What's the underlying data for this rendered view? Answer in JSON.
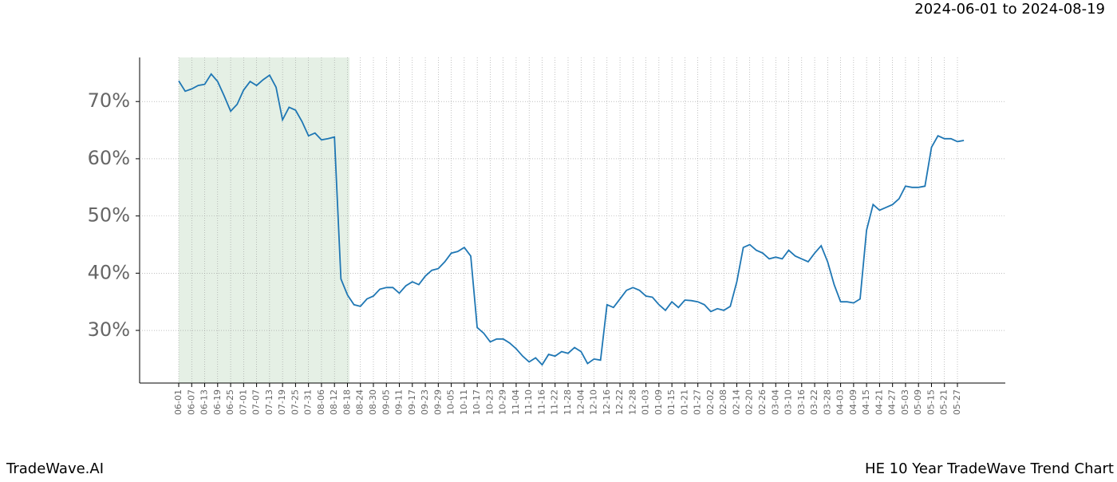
{
  "chart_data": {
    "type": "line",
    "title": "2024-06-01 to 2024-08-19",
    "footer_left": "TradeWave.AI",
    "footer_right": "HE 10 Year TradeWave Trend Chart",
    "categories": [
      "06-01",
      null,
      "06-07",
      null,
      "06-13",
      null,
      "06-19",
      null,
      "06-25",
      null,
      "07-01",
      null,
      "07-07",
      null,
      "07-13",
      null,
      "07-19",
      null,
      "07-25",
      null,
      "07-31",
      null,
      "08-06",
      null,
      "08-12",
      null,
      "08-18",
      null,
      "08-24",
      null,
      "08-30",
      null,
      "09-05",
      null,
      "09-11",
      null,
      "09-17",
      null,
      "09-23",
      null,
      "09-29",
      null,
      "10-05",
      null,
      "10-11",
      null,
      "10-17",
      null,
      "10-23",
      null,
      "10-29",
      null,
      "11-04",
      null,
      "11-10",
      null,
      "11-16",
      null,
      "11-22",
      null,
      "11-28",
      null,
      "12-04",
      null,
      "12-10",
      null,
      "12-16",
      null,
      "12-22",
      null,
      "12-28",
      null,
      "01-03",
      null,
      "01-09",
      null,
      "01-15",
      null,
      "01-21",
      null,
      "01-27",
      null,
      "02-02",
      null,
      "02-08",
      null,
      "02-14",
      null,
      "02-20",
      null,
      "02-26",
      null,
      "03-04",
      null,
      "03-10",
      null,
      "03-16",
      null,
      "03-22",
      null,
      "03-28",
      null,
      "04-03",
      null,
      "04-09",
      null,
      "04-15",
      null,
      "04-21",
      null,
      "04-27",
      null,
      "05-03",
      null,
      "05-09",
      null,
      "05-15",
      null,
      "05-21",
      null,
      "05-27",
      null
    ],
    "values": [
      73.6,
      71.8,
      72.2,
      72.8,
      73.0,
      74.8,
      73.5,
      71.0,
      68.3,
      69.5,
      72.0,
      73.5,
      72.8,
      73.8,
      74.6,
      72.5,
      66.8,
      69.0,
      68.5,
      66.5,
      64.0,
      64.5,
      63.3,
      63.5,
      63.8,
      39.0,
      36.2,
      34.5,
      34.2,
      35.5,
      36.0,
      37.2,
      37.5,
      37.5,
      36.5,
      37.8,
      38.5,
      38.0,
      39.5,
      40.5,
      40.8,
      42.0,
      43.5,
      43.8,
      44.5,
      43.0,
      30.5,
      29.5,
      28.0,
      28.5,
      28.5,
      27.8,
      26.8,
      25.5,
      24.5,
      25.2,
      24.0,
      25.8,
      25.5,
      26.3,
      26.0,
      27.0,
      26.3,
      24.2,
      25.0,
      24.8,
      34.5,
      34.0,
      35.5,
      37.0,
      37.5,
      37.0,
      36.0,
      35.8,
      34.5,
      33.5,
      35.0,
      34.0,
      35.3,
      35.2,
      35.0,
      34.5,
      33.3,
      33.8,
      33.5,
      34.2,
      38.5,
      44.5,
      45.0,
      44.0,
      43.5,
      42.5,
      42.8,
      42.5,
      44.0,
      43.0,
      42.5,
      42.0,
      43.5,
      44.8,
      42.0,
      38.0,
      35.0,
      35.0,
      34.8,
      35.5,
      47.5,
      52.0,
      51.0,
      51.5,
      52.0,
      53.0,
      55.2,
      55.0,
      55.0,
      55.2,
      62.0,
      64.0,
      63.5,
      63.5,
      63.0,
      63.2
    ],
    "color": "#1f77b4",
    "ylim": [
      20.8,
      77.7
    ],
    "yticks": [
      {
        "value": 30,
        "label": "30%"
      },
      {
        "value": 40,
        "label": "40%"
      },
      {
        "value": 50,
        "label": "50%"
      },
      {
        "value": 60,
        "label": "60%"
      },
      {
        "value": 70,
        "label": "70%"
      }
    ],
    "grid": true
  }
}
